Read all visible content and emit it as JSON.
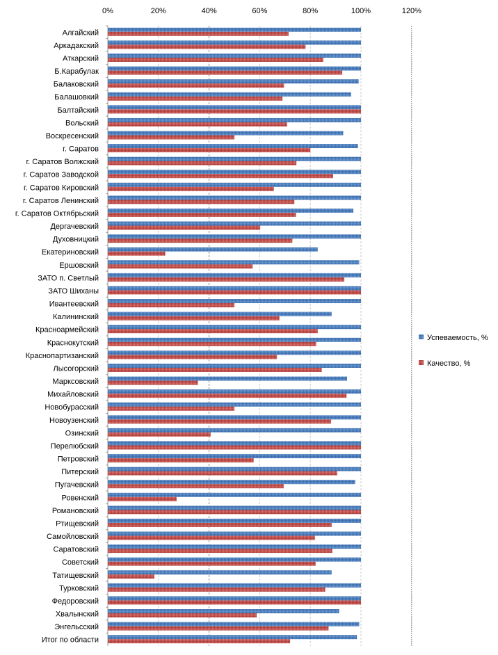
{
  "chart_data": {
    "type": "bar",
    "orientation": "horizontal",
    "xlim": [
      0,
      120
    ],
    "x_ticks": [
      "0%",
      "20%",
      "40%",
      "60%",
      "80%",
      "100%",
      "120%"
    ],
    "grid": true,
    "legend_position": "right",
    "categories": [
      "Алгайский",
      "Аркадакский",
      "Аткарский",
      "Б.Карабулак",
      "Балаковский",
      "Балашовкий",
      "Балтайский",
      "Вольский",
      "Воскресенский",
      "г. Саратов",
      "г. Саратов Волжский",
      "г. Саратов Заводской",
      "г. Саратов Кировский",
      "г. Саратов Ленинский",
      "г. Саратов Октябрьский",
      "Дергачевский",
      "Духовницкий",
      "Екатериновский",
      "Ершовский",
      "ЗАТО п. Светлый",
      "ЗАТО Шиханы",
      "Ивантеевский",
      "Калининский",
      "Красноармейский",
      "Краснокутский",
      "Краснопартизанский",
      "Лысогорский",
      "Марксовский",
      "Михайловский",
      "Новобурасский",
      "Новоузенский",
      "Озинский",
      "Перелюбский",
      "Петровский",
      "Питерский",
      "Пугачевский",
      "Ровенский",
      "Романовский",
      "Ртищевский",
      "Самойловский",
      "Саратовский",
      "Советский",
      "Татищевский",
      "Турковский",
      "Федоровский",
      "Хвалынский",
      "Энгельсский",
      "Итог по области"
    ],
    "series": [
      {
        "name": "Успеваемость, %",
        "color": "#4a7ebb",
        "values": [
          100,
          100,
          100,
          100,
          99.1,
          96.1,
          100,
          100,
          93.0,
          98.8,
          100,
          100,
          100,
          100,
          97.0,
          100,
          100,
          82.9,
          99.3,
          100,
          100,
          100,
          88.4,
          100,
          100,
          100,
          100,
          94.5,
          100,
          100,
          100,
          100,
          100,
          100,
          100,
          97.7,
          100,
          100,
          100,
          100,
          100,
          100,
          88.4,
          100,
          100,
          91.4,
          99.3,
          98.4
        ]
      },
      {
        "name": "Качество, %",
        "color": "#c0504d",
        "values": [
          71.4,
          78.1,
          85.1,
          92.6,
          69.6,
          69.0,
          100,
          70.8,
          50.0,
          80.0,
          74.5,
          89.0,
          65.6,
          73.7,
          74.3,
          60.2,
          72.9,
          22.7,
          57.2,
          93.4,
          100,
          50.0,
          67.8,
          82.9,
          82.3,
          66.8,
          84.5,
          35.6,
          94.3,
          50.0,
          88.2,
          40.6,
          100,
          57.6,
          90.6,
          69.5,
          27.2,
          100,
          88.4,
          81.8,
          88.7,
          82.1,
          18.4,
          85.9,
          100,
          58.8,
          87.2,
          72.0
        ]
      }
    ]
  }
}
